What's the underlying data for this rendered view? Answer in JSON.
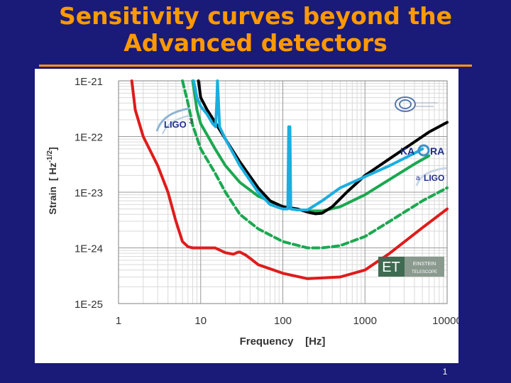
{
  "slide": {
    "title_line1": "Sensitivity curves beyond the",
    "title_line2": "Advanced detectors",
    "page_number": "1"
  },
  "colors": {
    "background": "#1a1a78",
    "title": "#ff9900",
    "aligo": "#000000",
    "kagra": "#1aaee0",
    "ligo3": "#1aa850",
    "et": "#e01b1b"
  },
  "logos": {
    "ligo3": "LIGO",
    "ligo3_sup": "3",
    "kagra_left": "KA",
    "kagra_right": "RA",
    "aligo_prefix": "a",
    "aligo": "LIGO",
    "et": "ET",
    "et_line1": "EINSTEIN",
    "et_line2": "TELESCOPE",
    "virgo_icon": "virgo-logo-icon"
  },
  "chart_data": {
    "type": "line",
    "xscale": "log",
    "yscale": "log",
    "xlim": [
      1,
      10000
    ],
    "ylim": [
      1e-25,
      1e-21
    ],
    "xlabel": "Frequency    [Hz]",
    "ylabel_main": "Strain",
    "ylabel_unit": "[ Hz",
    "ylabel_exp": "-1/2",
    "ylabel_close": "]",
    "grid": true,
    "x_ticks": [
      {
        "value": 1,
        "label": "1"
      },
      {
        "value": 10,
        "label": "10"
      },
      {
        "value": 100,
        "label": "100"
      },
      {
        "value": 1000,
        "label": "1000"
      },
      {
        "value": 10000,
        "label": "10000"
      }
    ],
    "y_ticks": [
      {
        "value": 1e-21,
        "label": "1E-21"
      },
      {
        "value": 1e-22,
        "label": "1E-22"
      },
      {
        "value": 1e-23,
        "label": "1E-23"
      },
      {
        "value": 1e-24,
        "label": "1E-24"
      },
      {
        "value": 1e-25,
        "label": "1E-25"
      }
    ],
    "series": [
      {
        "key": "aligo",
        "color": "#000000",
        "dash": false,
        "x": [
          9.4,
          10,
          12,
          15,
          20,
          30,
          50,
          70,
          100,
          150,
          200,
          250,
          300,
          400,
          600,
          1000,
          2000,
          4000,
          6000,
          10000
        ],
        "y": [
          1e-21,
          5e-22,
          3e-22,
          1.8e-22,
          9e-23,
          3.5e-23,
          1.2e-23,
          7e-24,
          5.5e-24,
          5e-24,
          4.4e-24,
          4.1e-24,
          4.2e-24,
          5.5e-24,
          1e-23,
          2e-23,
          4e-23,
          8e-23,
          1.2e-22,
          1.8e-22
        ]
      },
      {
        "key": "kagra",
        "color": "#1aaee0",
        "dash": false,
        "x": [
          8.2,
          9,
          10,
          12,
          14,
          15.2,
          15.8,
          16,
          16.4,
          17,
          20,
          30,
          50,
          70,
          100,
          115,
          118,
          120,
          122,
          125,
          150,
          200,
          300,
          500,
          1000,
          2000,
          4000,
          5000
        ],
        "y": [
          1e-21,
          5e-22,
          3.5e-22,
          2.5e-22,
          1.7e-22,
          1.5e-22,
          5e-22,
          1e-21,
          5e-22,
          1.5e-22,
          9e-23,
          3e-23,
          1e-23,
          6e-24,
          5e-24,
          5e-24,
          1.5e-22,
          1.2e-22,
          1.5e-22,
          5e-24,
          4.8e-24,
          4.8e-24,
          7e-24,
          1.2e-23,
          1.9e-23,
          3e-23,
          5e-23,
          6e-23
        ]
      },
      {
        "key": "ligo3",
        "color": "#1aa850",
        "dash": false,
        "x": [
          8,
          9,
          10,
          15,
          20,
          30,
          50,
          100,
          200,
          300,
          500,
          1000,
          2000,
          4000,
          6000
        ],
        "y": [
          1e-21,
          3e-22,
          1.7e-22,
          6e-23,
          3e-23,
          1.5e-23,
          8.5e-24,
          5.5e-24,
          4.6e-24,
          4.6e-24,
          5.5e-24,
          9e-24,
          1.7e-23,
          3.2e-23,
          4.5e-23
        ]
      },
      {
        "key": "ligo3_dashed",
        "color": "#1aa850",
        "dash": true,
        "x": [
          6,
          7,
          8,
          10,
          15,
          20,
          30,
          50,
          100,
          200,
          300,
          500,
          1000,
          2000,
          5000,
          10000
        ],
        "y": [
          1e-21,
          4e-22,
          1.6e-22,
          6e-23,
          2.2e-23,
          1e-23,
          4e-24,
          2.2e-24,
          1.3e-24,
          1e-24,
          1e-24,
          1.1e-24,
          1.6e-24,
          3e-24,
          7e-24,
          1.2e-23
        ]
      },
      {
        "key": "et",
        "color": "#e01b1b",
        "dash": false,
        "x": [
          1.45,
          1.6,
          2,
          3,
          4,
          5,
          6,
          7,
          8,
          9,
          10,
          12,
          15,
          20,
          25,
          28,
          30,
          35,
          40,
          50,
          100,
          200,
          500,
          1000,
          2000,
          5000,
          10000
        ],
        "y": [
          1e-21,
          3e-22,
          1e-22,
          3e-23,
          1e-23,
          3e-24,
          1.3e-24,
          1.05e-24,
          1e-24,
          1e-24,
          1e-24,
          1e-24,
          1e-24,
          8.2e-25,
          7.7e-25,
          8.3e-25,
          8.4e-25,
          7.5e-25,
          6.5e-25,
          5e-25,
          3.5e-25,
          2.8e-25,
          3e-25,
          4e-25,
          8e-25,
          2.3e-24,
          5e-24
        ]
      }
    ]
  }
}
